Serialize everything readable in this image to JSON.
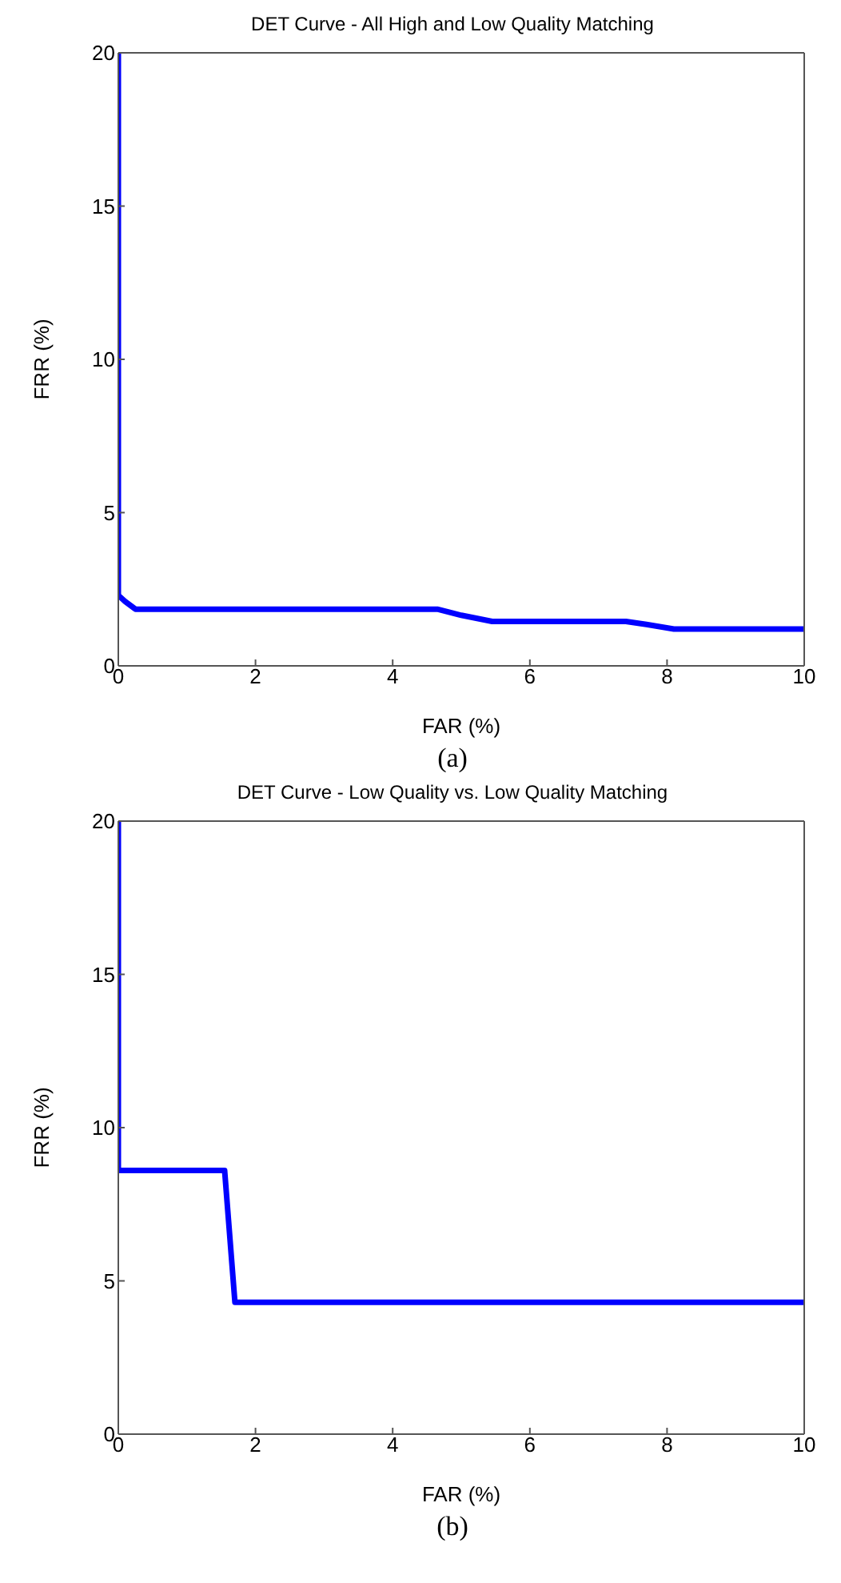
{
  "chart_data": [
    {
      "type": "line",
      "title": "DET Curve - All High and Low Quality Matching",
      "xlabel": "FAR (%)",
      "ylabel": "FRR (%)",
      "annotations": [
        "(a)"
      ],
      "marker": "none",
      "line_style": "solid",
      "series": [
        {
          "color": "#0000ff",
          "x": [
            0,
            0,
            0.1,
            0.25,
            4.65,
            5.0,
            5.45,
            7.4,
            7.7,
            8.1,
            10
          ],
          "values": [
            20,
            2.3,
            2.1,
            1.85,
            1.85,
            1.65,
            1.45,
            1.45,
            1.35,
            1.2,
            1.2
          ]
        }
      ],
      "xlim": [
        0,
        10
      ],
      "xticks": [
        0,
        2,
        4,
        6,
        8,
        10
      ],
      "ylim": [
        0,
        20
      ],
      "yticks": [
        0,
        5,
        10,
        15,
        20
      ]
    },
    {
      "type": "line",
      "title": "DET Curve - Low Quality vs. Low Quality Matching",
      "xlabel": "FAR (%)",
      "ylabel": "FRR (%)",
      "annotations": [
        "(b)"
      ],
      "marker": "none",
      "line_style": "solid",
      "series": [
        {
          "color": "#0000ff",
          "x": [
            0,
            0,
            1.55,
            1.7,
            10
          ],
          "values": [
            20,
            8.6,
            8.6,
            4.3,
            4.3
          ]
        }
      ],
      "xlim": [
        0,
        10
      ],
      "xticks": [
        0,
        2,
        4,
        6,
        8,
        10
      ],
      "ylim": [
        0,
        20
      ],
      "yticks": [
        0,
        5,
        10,
        15,
        20
      ]
    }
  ]
}
